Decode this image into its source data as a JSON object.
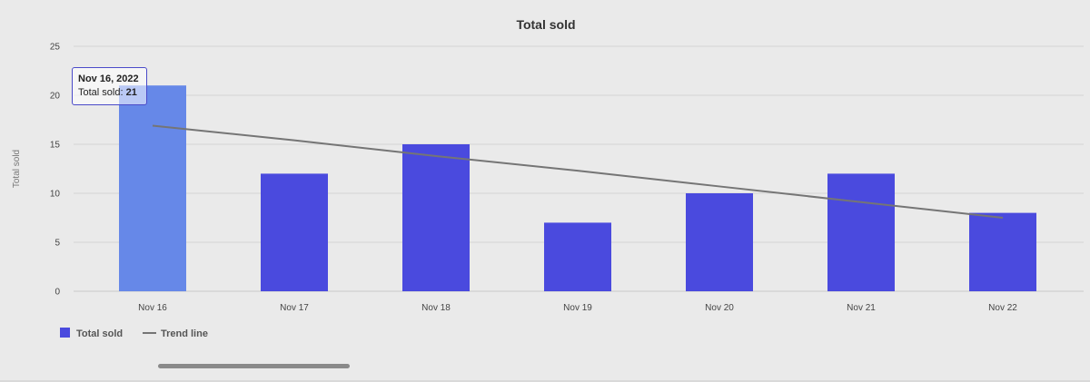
{
  "colors": {
    "background": "#eaeaea",
    "bar": "#4a4ade",
    "bar_highlight": "#6688e8",
    "trend": "#757575",
    "grid": "#d4d4d4",
    "text": "#444444"
  },
  "tooltip": {
    "date": "Nov 16, 2022",
    "label": "Total sold: ",
    "value": "21"
  },
  "chart_data": {
    "type": "bar",
    "title": "Total sold",
    "xlabel": "",
    "ylabel": "Total sold",
    "ylim": [
      0,
      25
    ],
    "yticks": [
      0,
      5,
      10,
      15,
      20,
      25
    ],
    "grid": true,
    "legend_position": "bottom-left",
    "categories": [
      "Nov 16",
      "Nov 17",
      "Nov 18",
      "Nov 19",
      "Nov 20",
      "Nov 21",
      "Nov 22"
    ],
    "series": [
      {
        "name": "Total sold",
        "type": "bar",
        "values": [
          21,
          12,
          15,
          7,
          10,
          12,
          8
        ],
        "highlighted_index": 0
      },
      {
        "name": "Trend line",
        "type": "line",
        "values": [
          16.9,
          15.4,
          13.8,
          12.3,
          10.7,
          9.1,
          7.5
        ]
      }
    ]
  }
}
